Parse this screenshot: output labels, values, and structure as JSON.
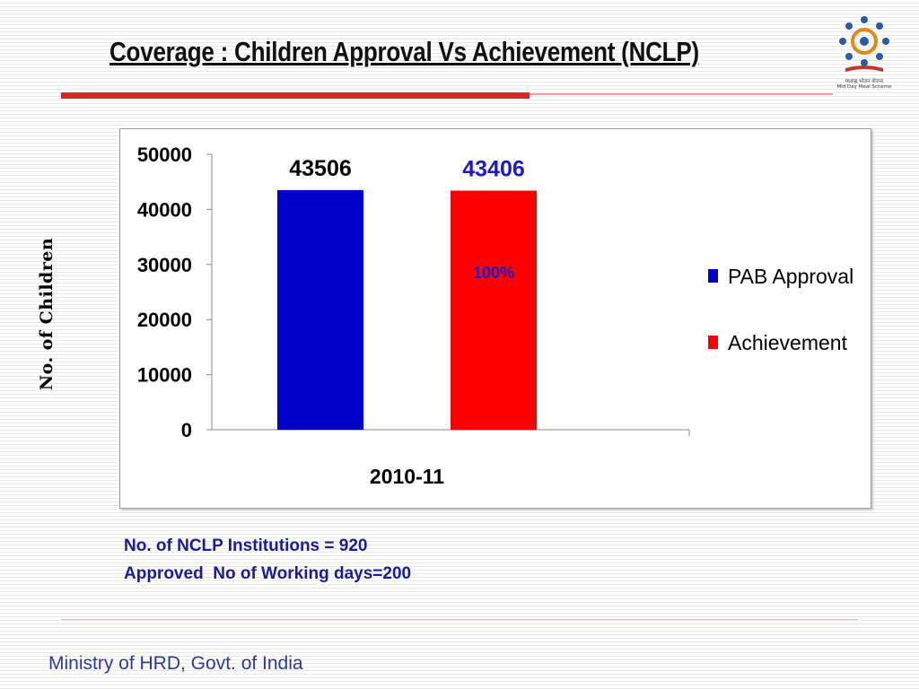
{
  "slide": {
    "title": "Coverage : Children Approval Vs Achievement (NCLP)",
    "y_axis_label": "No. of Children",
    "notes": [
      "No. of NCLP Institutions = 920",
      "Approved  No of Working days=200"
    ],
    "footer": "Ministry of HRD, Govt. of India",
    "logo": {
      "icon": "mid-day-meal-logo",
      "text_line1": "मध्याह्न भोजन योजना",
      "text_line2": "Mid Day Meal Scheme"
    }
  },
  "chart_data": {
    "type": "bar",
    "categories": [
      "2010-11"
    ],
    "series": [
      {
        "name": "PAB Approval",
        "values": [
          43506
        ],
        "color": "#0000cc",
        "label_color": "#000000"
      },
      {
        "name": "Achievement",
        "values": [
          43406
        ],
        "color": "#ff0000",
        "label_color": "#1a1acc"
      }
    ],
    "annotations": [
      {
        "series": "Achievement",
        "text": "100%",
        "color": "#1a1acc"
      }
    ],
    "yticks": [
      "0",
      "10000",
      "20000",
      "30000",
      "40000",
      "50000"
    ],
    "ylim": [
      0,
      50000
    ],
    "legend_position": "right",
    "grid": false
  }
}
